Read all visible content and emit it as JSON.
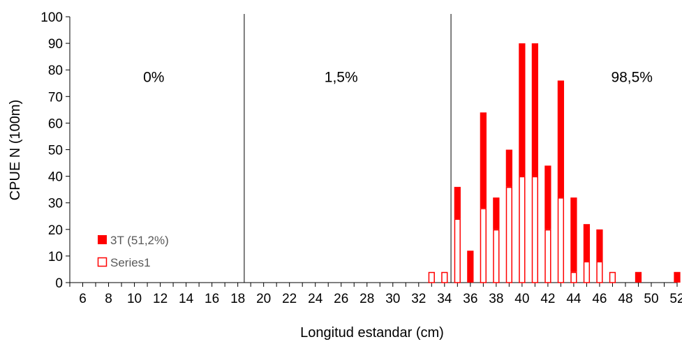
{
  "chart_data": {
    "type": "bar",
    "stacked": true,
    "xlabel": "Longitud estandar (cm)",
    "ylabel": "CPUE N (100m)",
    "ylim": [
      0,
      100
    ],
    "y_ticks": [
      0,
      10,
      20,
      30,
      40,
      50,
      60,
      70,
      80,
      90,
      100
    ],
    "xlim": [
      5,
      52
    ],
    "x_tick_labels": [
      6,
      8,
      10,
      12,
      14,
      16,
      18,
      20,
      22,
      24,
      26,
      28,
      30,
      32,
      34,
      36,
      38,
      40,
      42,
      44,
      46,
      48,
      50,
      52
    ],
    "series": [
      {
        "name": "3T (51,2%)",
        "style": "filled",
        "color": "#ff0000",
        "points": [
          [
            35,
            12
          ],
          [
            36,
            12
          ],
          [
            37,
            36
          ],
          [
            38,
            12
          ],
          [
            39,
            14
          ],
          [
            40,
            50
          ],
          [
            41,
            50
          ],
          [
            42,
            24
          ],
          [
            43,
            44
          ],
          [
            44,
            28
          ],
          [
            45,
            14
          ],
          [
            46,
            12
          ],
          [
            49,
            4
          ],
          [
            52,
            4
          ]
        ]
      },
      {
        "name": "Series1",
        "style": "outline",
        "color": "#ff0000",
        "points": [
          [
            33,
            4
          ],
          [
            34,
            4
          ],
          [
            35,
            24
          ],
          [
            37,
            28
          ],
          [
            38,
            20
          ],
          [
            39,
            36
          ],
          [
            40,
            40
          ],
          [
            41,
            40
          ],
          [
            42,
            20
          ],
          [
            43,
            32
          ],
          [
            44,
            4
          ],
          [
            45,
            8
          ],
          [
            46,
            8
          ],
          [
            47,
            4
          ]
        ]
      }
    ],
    "divider_lines_x": [
      18,
      34
    ],
    "annotations": [
      {
        "text": "0%",
        "x": 11.5,
        "y": 77.5
      },
      {
        "text": "1,5%",
        "x": 26,
        "y": 77.5
      },
      {
        "text": "98,5%",
        "x": 48.5,
        "y": 77.5
      }
    ],
    "legend_position": "bottom-left",
    "grid": false
  }
}
